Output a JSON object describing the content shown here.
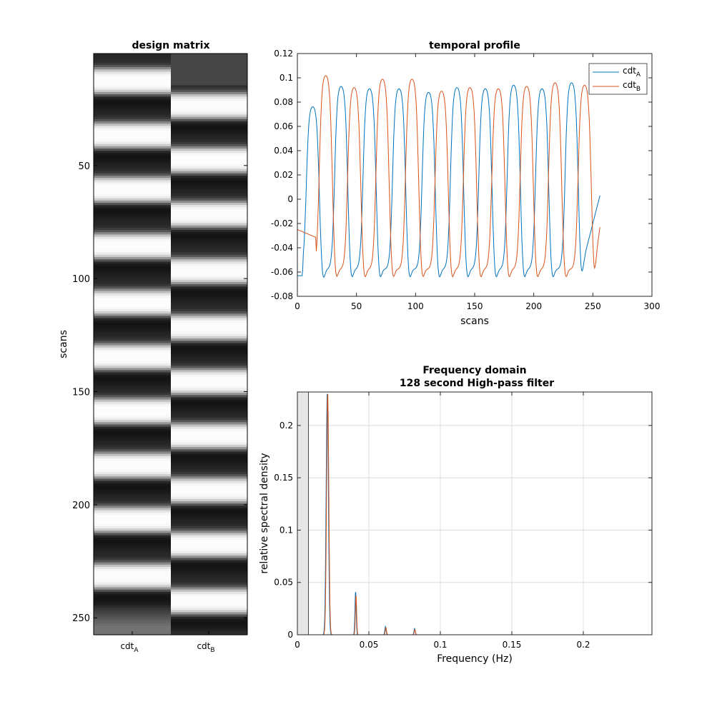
{
  "chart_data": [
    {
      "type": "heatmap",
      "title": "design matrix",
      "ylabel": "scans",
      "yticks": [
        50,
        100,
        150,
        200,
        250
      ],
      "ylim": [
        1,
        257
      ],
      "columns": [
        {
          "base": "cdt",
          "sub": "A"
        },
        {
          "base": "cdt",
          "sub": "B"
        }
      ],
      "colormap": "gray",
      "blocks_A": [
        {
          "start": 6,
          "end": 17
        },
        {
          "start": 30,
          "end": 41
        },
        {
          "start": 54,
          "end": 65
        },
        {
          "start": 79,
          "end": 90
        },
        {
          "start": 104,
          "end": 115
        },
        {
          "start": 128,
          "end": 139
        },
        {
          "start": 152,
          "end": 163
        },
        {
          "start": 176,
          "end": 187
        },
        {
          "start": 200,
          "end": 211
        },
        {
          "start": 225,
          "end": 236
        }
      ],
      "blocks_B": [
        {
          "start": 17,
          "end": 28
        },
        {
          "start": 41,
          "end": 52
        },
        {
          "start": 65,
          "end": 76
        },
        {
          "start": 90,
          "end": 101
        },
        {
          "start": 115,
          "end": 126
        },
        {
          "start": 139,
          "end": 150
        },
        {
          "start": 163,
          "end": 174
        },
        {
          "start": 187,
          "end": 198
        },
        {
          "start": 211,
          "end": 222
        },
        {
          "start": 236,
          "end": 247
        }
      ]
    },
    {
      "type": "line",
      "title": "temporal profile",
      "xlabel": "scans",
      "ylabel": "",
      "xlim": [
        0,
        300
      ],
      "ylim": [
        -0.08,
        0.12
      ],
      "xticks": [
        0,
        50,
        100,
        150,
        200,
        250,
        300
      ],
      "yticks": [
        -0.08,
        -0.06,
        -0.04,
        -0.02,
        0,
        0.02,
        0.04,
        0.06,
        0.08,
        0.1,
        0.12
      ],
      "ytick_labels": [
        "-0.08",
        "-0.06",
        "-0.04",
        "-0.02",
        "0",
        "0.02",
        "0.04",
        "0.06",
        "0.08",
        "0.1",
        "0.12"
      ],
      "legend_position": "top-right",
      "series": [
        {
          "base": "cdt",
          "sub": "A",
          "color": "#0072bd",
          "start": -0.063,
          "end": 0.003,
          "peaks": [
            0.078,
            0.095,
            0.093,
            0.093,
            0.09,
            0.094,
            0.093,
            0.096,
            0.093,
            0.098,
            0.093,
            0.097,
            0.096,
            0.095
          ]
        },
        {
          "base": "cdt",
          "sub": "B",
          "color": "#d95319",
          "start": -0.025,
          "end": -0.023,
          "peaks": [
            0.104,
            0.094,
            0.101,
            0.101,
            0.091,
            0.094,
            0.093,
            0.095,
            0.098,
            0.096,
            0.093,
            0.09,
            0.096,
            0.094
          ]
        }
      ]
    },
    {
      "type": "line",
      "title": "Frequency domain",
      "subtitle": "128 second High-pass filter",
      "xlabel": "Frequency (Hz)",
      "ylabel": "relative spectral density",
      "xlim": [
        0,
        0.248
      ],
      "ylim": [
        0,
        0.232
      ],
      "xticks": [
        0,
        0.05,
        0.1,
        0.15,
        0.2
      ],
      "xtick_labels": [
        "0",
        "0.05",
        "0.1",
        "0.15",
        "0.2"
      ],
      "yticks": [
        0,
        0.05,
        0.1,
        0.15,
        0.2
      ],
      "ytick_labels": [
        "0",
        "0.05",
        "0.1",
        "0.15",
        "0.2"
      ],
      "grid": true,
      "highpass_cutoff": 0.0078,
      "series": [
        {
          "base": "cdt",
          "sub": "A",
          "color": "#0072bd",
          "peaks": [
            {
              "f": 0.0209,
              "h": 0.232
            },
            {
              "f": 0.0407,
              "h": 0.042
            },
            {
              "f": 0.0616,
              "h": 0.008
            },
            {
              "f": 0.082,
              "h": 0.006
            }
          ]
        },
        {
          "base": "cdt",
          "sub": "B",
          "color": "#d95319",
          "peaks": [
            {
              "f": 0.0212,
              "h": 0.232
            },
            {
              "f": 0.041,
              "h": 0.038
            },
            {
              "f": 0.0619,
              "h": 0.007
            },
            {
              "f": 0.0822,
              "h": 0.005
            }
          ]
        }
      ]
    }
  ]
}
